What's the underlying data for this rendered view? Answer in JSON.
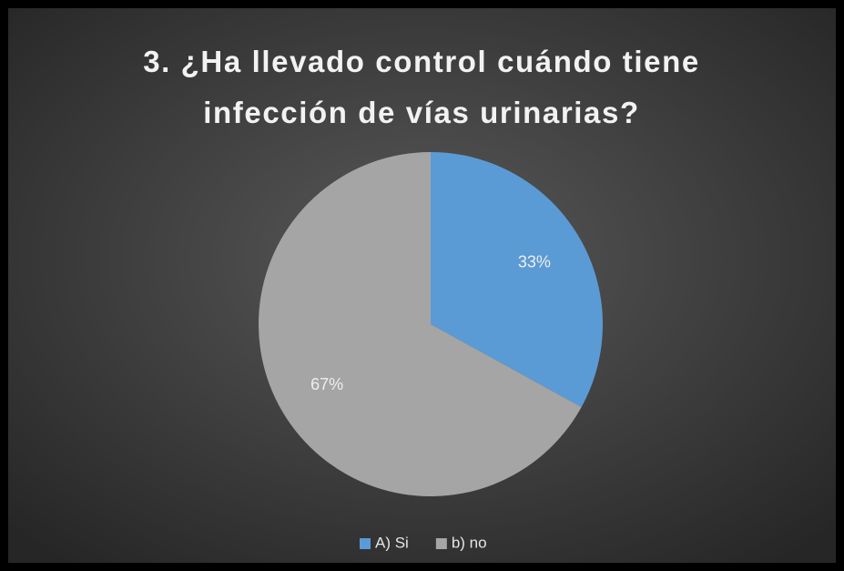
{
  "chart_data": {
    "type": "pie",
    "title": "3. ¿Ha llevado control cuándo tiene infección de vías urinarias?",
    "categories": [
      "A) Si",
      "b) no"
    ],
    "values": [
      33,
      67
    ],
    "value_labels": [
      "33%",
      "67%"
    ],
    "colors": [
      "#5b9bd5",
      "#a5a5a5"
    ],
    "legend": "bottom"
  }
}
